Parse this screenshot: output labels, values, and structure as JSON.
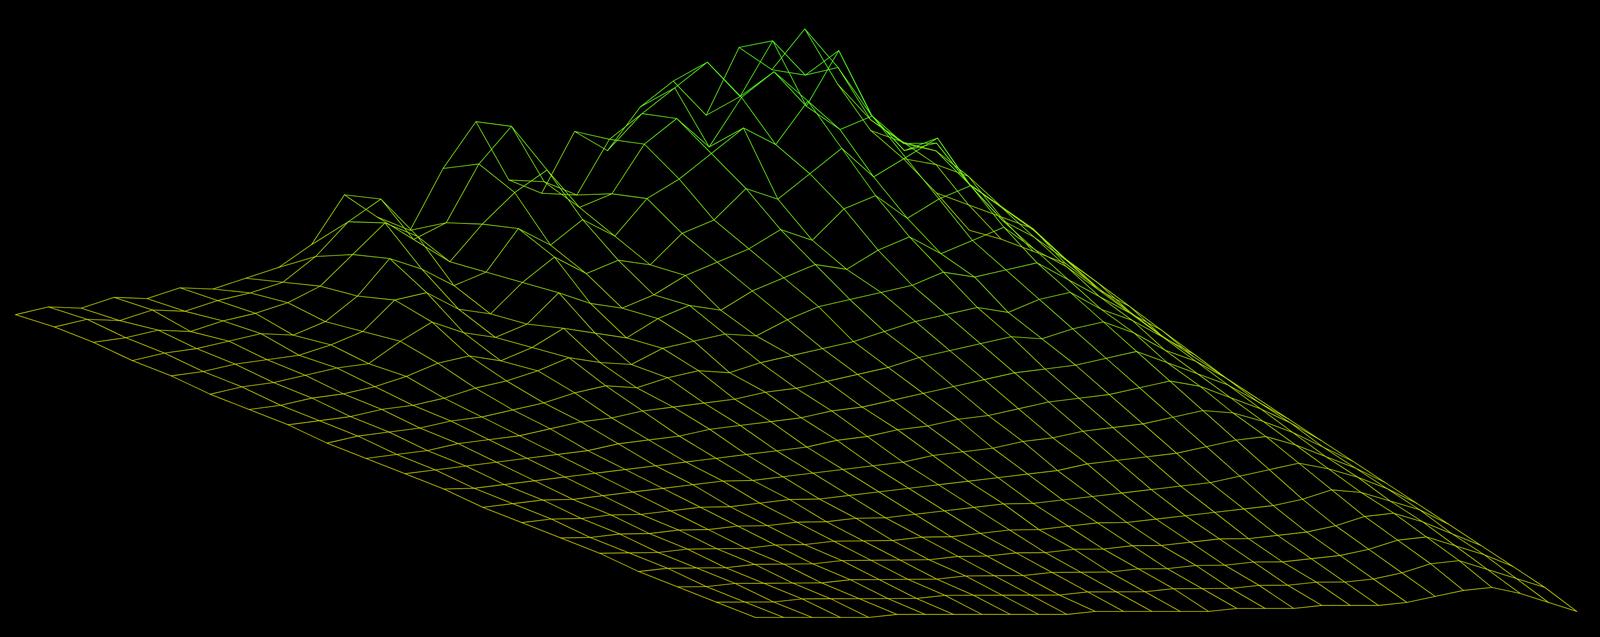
{
  "chart_data": {
    "type": "wireframe",
    "tick_labels": false,
    "colors": [
      "#cccc00",
      "#44ff22"
    ],
    "zlim": [
      0,
      100
    ],
    "z": [
      [
        4,
        6,
        5,
        8,
        7,
        10,
        9,
        12,
        15,
        22,
        38,
        30,
        25,
        45,
        60,
        40,
        35,
        55,
        48,
        62,
        70,
        58,
        80,
        72,
        85,
        66,
        50,
        40,
        28,
        15
      ],
      [
        5,
        7,
        6,
        9,
        8,
        11,
        13,
        16,
        24,
        35,
        42,
        28,
        33,
        52,
        64,
        45,
        40,
        58,
        66,
        74,
        82,
        70,
        88,
        76,
        78,
        60,
        52,
        44,
        30,
        18
      ],
      [
        5,
        6,
        8,
        7,
        10,
        12,
        15,
        20,
        30,
        40,
        35,
        26,
        38,
        48,
        55,
        42,
        46,
        62,
        70,
        60,
        76,
        84,
        72,
        90,
        68,
        58,
        55,
        46,
        32,
        20
      ],
      [
        4,
        6,
        7,
        9,
        11,
        10,
        14,
        22,
        34,
        30,
        24,
        28,
        42,
        36,
        44,
        38,
        50,
        56,
        64,
        72,
        66,
        80,
        70,
        74,
        62,
        64,
        50,
        42,
        34,
        22
      ],
      [
        4,
        5,
        7,
        8,
        9,
        12,
        16,
        26,
        28,
        22,
        20,
        30,
        38,
        32,
        36,
        34,
        44,
        48,
        58,
        54,
        62,
        70,
        60,
        66,
        72,
        56,
        48,
        40,
        30,
        20
      ],
      [
        3,
        5,
        6,
        8,
        10,
        11,
        18,
        24,
        20,
        18,
        22,
        32,
        28,
        26,
        30,
        36,
        40,
        44,
        50,
        46,
        56,
        60,
        52,
        58,
        62,
        50,
        44,
        36,
        28,
        18
      ],
      [
        3,
        4,
        6,
        7,
        9,
        12,
        16,
        18,
        16,
        20,
        26,
        24,
        22,
        28,
        32,
        30,
        36,
        40,
        44,
        42,
        48,
        52,
        46,
        50,
        54,
        46,
        40,
        32,
        26,
        16
      ],
      [
        3,
        4,
        5,
        7,
        8,
        10,
        13,
        15,
        18,
        22,
        20,
        19,
        24,
        26,
        28,
        27,
        32,
        36,
        38,
        40,
        42,
        46,
        44,
        46,
        48,
        42,
        36,
        30,
        24,
        15
      ],
      [
        2,
        4,
        5,
        6,
        8,
        9,
        11,
        13,
        16,
        18,
        17,
        20,
        22,
        21,
        24,
        26,
        28,
        30,
        33,
        36,
        38,
        40,
        38,
        42,
        44,
        38,
        34,
        28,
        22,
        14
      ],
      [
        2,
        3,
        4,
        6,
        7,
        8,
        10,
        12,
        13,
        15,
        16,
        17,
        18,
        20,
        21,
        23,
        25,
        27,
        30,
        32,
        34,
        36,
        35,
        38,
        40,
        36,
        30,
        26,
        20,
        13
      ],
      [
        2,
        3,
        4,
        5,
        6,
        7,
        8,
        10,
        11,
        12,
        14,
        15,
        16,
        17,
        19,
        20,
        22,
        24,
        26,
        28,
        30,
        31,
        32,
        34,
        36,
        32,
        28,
        24,
        18,
        12
      ],
      [
        2,
        2,
        3,
        4,
        5,
        6,
        7,
        8,
        9,
        10,
        11,
        12,
        13,
        15,
        16,
        18,
        19,
        21,
        22,
        24,
        26,
        27,
        28,
        30,
        32,
        30,
        26,
        22,
        17,
        11
      ],
      [
        1,
        2,
        3,
        3,
        4,
        5,
        6,
        7,
        8,
        8,
        9,
        10,
        11,
        12,
        13,
        15,
        16,
        17,
        19,
        20,
        22,
        23,
        24,
        26,
        28,
        27,
        24,
        20,
        15,
        10
      ],
      [
        1,
        2,
        2,
        3,
        3,
        4,
        5,
        5,
        6,
        7,
        7,
        8,
        9,
        10,
        11,
        12,
        13,
        14,
        15,
        17,
        18,
        19,
        20,
        22,
        24,
        25,
        22,
        18,
        14,
        9
      ],
      [
        1,
        1,
        2,
        2,
        3,
        3,
        4,
        4,
        5,
        5,
        6,
        6,
        7,
        8,
        9,
        10,
        10,
        11,
        12,
        13,
        14,
        15,
        16,
        18,
        20,
        22,
        20,
        17,
        13,
        8
      ],
      [
        1,
        1,
        1,
        2,
        2,
        2,
        3,
        3,
        4,
        4,
        4,
        5,
        5,
        6,
        7,
        7,
        8,
        9,
        9,
        10,
        11,
        12,
        13,
        14,
        16,
        19,
        18,
        15,
        12,
        7
      ],
      [
        0,
        1,
        1,
        1,
        2,
        2,
        2,
        3,
        3,
        3,
        3,
        4,
        4,
        5,
        5,
        6,
        6,
        7,
        7,
        8,
        9,
        9,
        10,
        11,
        13,
        16,
        17,
        14,
        10,
        6
      ],
      [
        0,
        0,
        1,
        1,
        1,
        1,
        2,
        2,
        2,
        2,
        3,
        3,
        3,
        4,
        4,
        4,
        5,
        5,
        6,
        6,
        7,
        7,
        8,
        9,
        11,
        14,
        15,
        12,
        9,
        5
      ],
      [
        0,
        0,
        0,
        1,
        1,
        1,
        1,
        1,
        2,
        2,
        2,
        2,
        2,
        3,
        3,
        3,
        4,
        4,
        4,
        5,
        5,
        6,
        6,
        7,
        9,
        12,
        13,
        10,
        7,
        4
      ],
      [
        0,
        0,
        0,
        0,
        0,
        1,
        1,
        1,
        1,
        1,
        1,
        1,
        2,
        2,
        2,
        2,
        2,
        3,
        3,
        3,
        4,
        4,
        4,
        5,
        7,
        9,
        10,
        8,
        5,
        2
      ]
    ]
  }
}
